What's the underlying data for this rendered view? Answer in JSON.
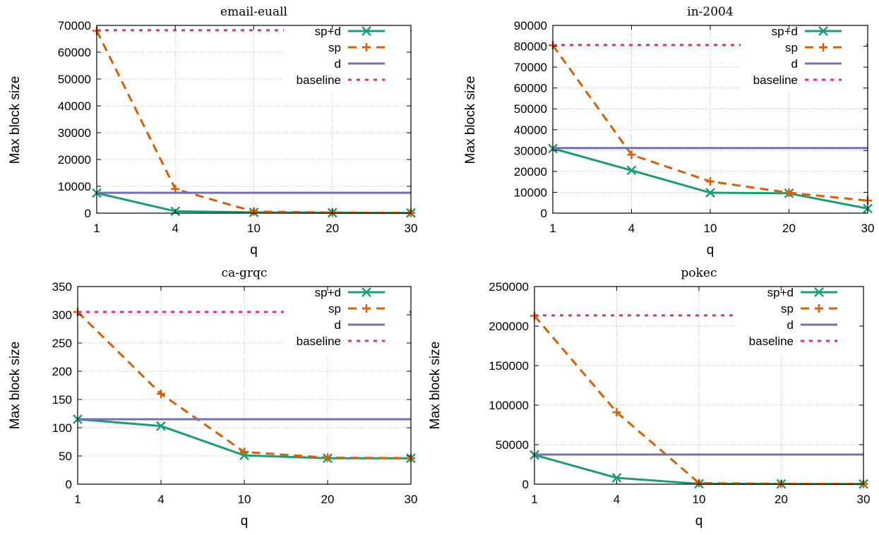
{
  "colors": {
    "sp+d": "#1a9e77",
    "sp": "#d95f02",
    "d": "#7570b3",
    "baseline": "#e7298a"
  },
  "legend_position": "top-right",
  "chart_data": [
    {
      "type": "line",
      "title": "email-euall",
      "xlabel": "q",
      "ylabel": "Max block size",
      "x_categories": [
        "1",
        "4",
        "10",
        "20",
        "30"
      ],
      "ylim": [
        0,
        70000
      ],
      "yticks": [
        "0",
        "10000",
        "20000",
        "30000",
        "40000",
        "50000",
        "60000",
        "70000"
      ],
      "grid": true,
      "series": [
        {
          "name": "sp+d",
          "values": [
            7500,
            700,
            300,
            150,
            80
          ]
        },
        {
          "name": "sp",
          "values": [
            68000,
            9000,
            600,
            250,
            100
          ]
        },
        {
          "name": "d",
          "values": [
            7600,
            7600,
            7600,
            7600,
            7600
          ]
        },
        {
          "name": "baseline",
          "values": [
            68200,
            68200,
            68200,
            68200,
            68200
          ]
        }
      ]
    },
    {
      "type": "line",
      "title": "in-2004",
      "xlabel": "q",
      "ylabel": "Max block size",
      "x_categories": [
        "1",
        "4",
        "10",
        "20",
        "30"
      ],
      "ylim": [
        0,
        90000
      ],
      "yticks": [
        "0",
        "10000",
        "20000",
        "30000",
        "40000",
        "50000",
        "60000",
        "70000",
        "80000",
        "90000"
      ],
      "grid": true,
      "series": [
        {
          "name": "sp+d",
          "values": [
            31000,
            20500,
            9800,
            9500,
            2200
          ]
        },
        {
          "name": "sp",
          "values": [
            80500,
            28000,
            15200,
            9800,
            6000
          ]
        },
        {
          "name": "d",
          "values": [
            31200,
            31200,
            31200,
            31200,
            31200
          ]
        },
        {
          "name": "baseline",
          "values": [
            80600,
            80600,
            80600,
            80600,
            80600
          ]
        }
      ]
    },
    {
      "type": "line",
      "title": "ca-grqc",
      "xlabel": "q",
      "ylabel": "Max block size",
      "x_categories": [
        "1",
        "4",
        "10",
        "20",
        "30"
      ],
      "ylim": [
        0,
        350
      ],
      "yticks": [
        "0",
        "50",
        "100",
        "150",
        "200",
        "250",
        "300",
        "350"
      ],
      "grid": true,
      "series": [
        {
          "name": "sp+d",
          "values": [
            115,
            103,
            51,
            46,
            46
          ]
        },
        {
          "name": "sp",
          "values": [
            305,
            160,
            57,
            47,
            46
          ]
        },
        {
          "name": "d",
          "values": [
            115,
            115,
            115,
            115,
            115
          ]
        },
        {
          "name": "baseline",
          "values": [
            305,
            305,
            305,
            305,
            305
          ]
        }
      ]
    },
    {
      "type": "line",
      "title": "pokec",
      "xlabel": "q",
      "ylabel": "Max block size",
      "x_categories": [
        "1",
        "4",
        "10",
        "20",
        "30"
      ],
      "ylim": [
        0,
        250000
      ],
      "yticks": [
        "0",
        "50000",
        "100000",
        "150000",
        "200000",
        "250000"
      ],
      "grid": true,
      "series": [
        {
          "name": "sp+d",
          "values": [
            37000,
            8000,
            500,
            300,
            200
          ]
        },
        {
          "name": "sp",
          "values": [
            213000,
            91000,
            1500,
            500,
            300
          ]
        },
        {
          "name": "d",
          "values": [
            37500,
            37500,
            37500,
            37500,
            37500
          ]
        },
        {
          "name": "baseline",
          "values": [
            213500,
            213500,
            213500,
            213500,
            213500
          ]
        }
      ]
    }
  ]
}
